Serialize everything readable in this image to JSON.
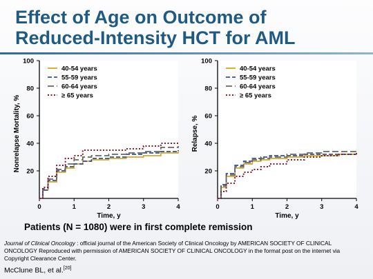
{
  "slide": {
    "title_line1": "Effect of Age on Outcome of",
    "title_line2": "Reduced-Intensity HCT for AML",
    "caption": "Patients (N = 1080) were in first complete remission",
    "source_journal": "Journal of Clinical Oncology",
    "source_rest": " : official journal of the American Society of Clinical Oncology by AMERICAN SOCIETY OF CLINICAL ONCOLOGY Reproduced with permission of AMERICAN SOCIETY OF CLINICAL ONCOLOGY in the format post on the internet via Copyright Clearance Center.",
    "citation": "McClune BL, et al.",
    "citation_ref": "[20]"
  },
  "colors": {
    "s40": "#d9a520",
    "s55": "#2b4fa0",
    "s60": "#666666",
    "s65": "#8b1a24"
  },
  "chart_data": [
    {
      "type": "line",
      "xlabel": "Time, y",
      "ylabel": "Nonrelapse Mortality, %",
      "xlim": [
        0,
        4
      ],
      "ylim": [
        0,
        100
      ],
      "xticks": [
        0,
        1,
        2,
        3,
        4
      ],
      "yticks": [
        20,
        40,
        60,
        80,
        100
      ],
      "legend_position": "top-left",
      "series": [
        {
          "name": "40-54 years",
          "color": "#d9a520",
          "dash": "solid",
          "x": [
            0,
            0.1,
            0.25,
            0.5,
            0.75,
            1,
            1.25,
            1.5,
            2,
            2.5,
            3,
            3.5,
            4
          ],
          "y": [
            0,
            6,
            12,
            19,
            22,
            25,
            27,
            28,
            29,
            30,
            31,
            33,
            35
          ]
        },
        {
          "name": "55-59 years",
          "color": "#2b4fa0",
          "dash": "dash",
          "x": [
            0,
            0.1,
            0.25,
            0.5,
            0.75,
            1,
            1.25,
            1.5,
            2,
            2.5,
            3,
            3.5,
            4
          ],
          "y": [
            0,
            6,
            13,
            20,
            23,
            25,
            27,
            29,
            30,
            32,
            33,
            34,
            35
          ]
        },
        {
          "name": "60-64 years",
          "color": "#666666",
          "dash": "longdash",
          "x": [
            0,
            0.1,
            0.25,
            0.5,
            0.75,
            1,
            1.25,
            1.5,
            2,
            2.5,
            3,
            3.5,
            4
          ],
          "y": [
            0,
            7,
            14,
            21,
            25,
            28,
            30,
            31,
            32,
            33,
            34,
            37,
            38
          ]
        },
        {
          "name": "≥ 65 years",
          "color": "#8b1a24",
          "dash": "dot",
          "x": [
            0,
            0.1,
            0.25,
            0.5,
            0.75,
            1,
            1.25,
            1.5,
            2,
            2.5,
            3,
            3.5,
            4
          ],
          "y": [
            0,
            8,
            16,
            24,
            29,
            31,
            35,
            35,
            35,
            36,
            38,
            40,
            40
          ]
        }
      ]
    },
    {
      "type": "line",
      "xlabel": "Time, y",
      "ylabel": "Relapse, %",
      "xlim": [
        0,
        4
      ],
      "ylim": [
        0,
        100
      ],
      "xticks": [
        0,
        1,
        2,
        3,
        4
      ],
      "yticks": [
        20,
        40,
        60,
        80,
        100
      ],
      "legend_position": "top-left",
      "series": [
        {
          "name": "40-54 years",
          "color": "#d9a520",
          "dash": "solid",
          "x": [
            0,
            0.1,
            0.25,
            0.5,
            0.75,
            1,
            1.25,
            1.5,
            2,
            2.5,
            3,
            3.5,
            4
          ],
          "y": [
            0,
            8,
            16,
            22,
            25,
            27,
            28,
            29,
            30,
            31,
            31,
            32,
            33
          ]
        },
        {
          "name": "55-59 years",
          "color": "#2b4fa0",
          "dash": "dash",
          "x": [
            0,
            0.1,
            0.25,
            0.5,
            0.75,
            1,
            1.25,
            1.5,
            2,
            2.5,
            3,
            3.5,
            4
          ],
          "y": [
            0,
            10,
            18,
            24,
            27,
            29,
            30,
            31,
            31,
            32,
            32,
            32,
            32
          ]
        },
        {
          "name": "60-64 years",
          "color": "#666666",
          "dash": "longdash",
          "x": [
            0,
            0.1,
            0.25,
            0.5,
            0.75,
            1,
            1.25,
            1.5,
            2,
            2.5,
            3,
            3.5,
            4
          ],
          "y": [
            0,
            9,
            17,
            23,
            26,
            28,
            29,
            30,
            32,
            33,
            34,
            34,
            34
          ]
        },
        {
          "name": "≥ 65 years",
          "color": "#8b1a24",
          "dash": "dot",
          "x": [
            0,
            0.1,
            0.25,
            0.5,
            0.75,
            1,
            1.25,
            1.5,
            2,
            2.5,
            3,
            3.5,
            4
          ],
          "y": [
            0,
            5,
            11,
            16,
            19,
            21,
            23,
            25,
            28,
            30,
            31,
            32,
            33
          ]
        }
      ]
    }
  ]
}
